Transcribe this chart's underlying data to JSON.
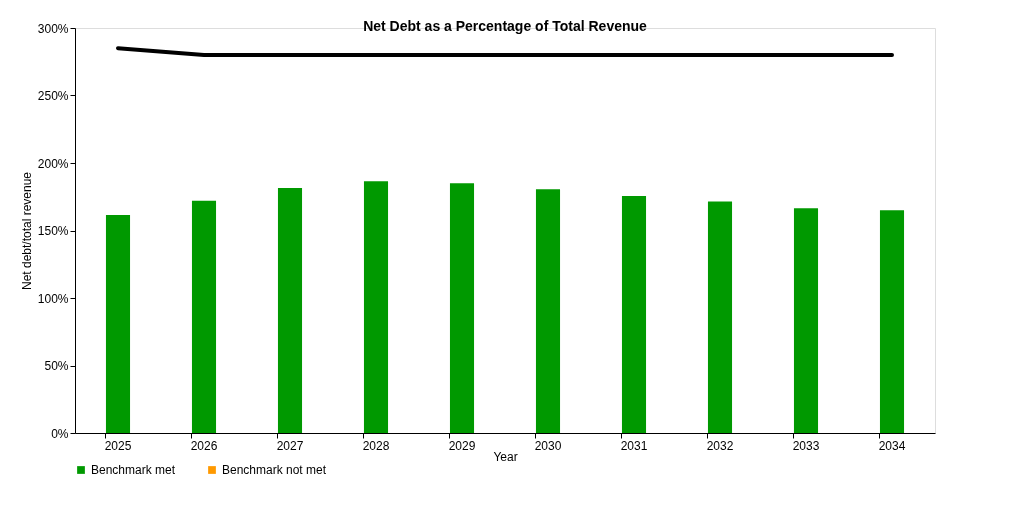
{
  "chart_data": {
    "type": "bar",
    "title": "Net Debt as a Percentage of Total Revenue",
    "xlabel": "Year",
    "ylabel": "Net debt/total revenue",
    "categories": [
      "2025",
      "2026",
      "2027",
      "2028",
      "2029",
      "2030",
      "2031",
      "2032",
      "2033",
      "2034"
    ],
    "series": [
      {
        "name": "Benchmark met",
        "color": "#009900",
        "values": [
          161.5,
          172,
          181.5,
          186.5,
          185,
          180.5,
          175.5,
          171.5,
          166.5,
          165
        ]
      },
      {
        "name": "Benchmark not met",
        "color": "#ff9900",
        "values": [
          null,
          null,
          null,
          null,
          null,
          null,
          null,
          null,
          null,
          null
        ]
      },
      {
        "type": "line",
        "color": "#000000",
        "values": [
          285,
          280,
          280,
          280,
          280,
          280,
          280,
          280,
          280,
          280
        ]
      }
    ],
    "ylim": [
      0,
      300
    ],
    "yticks": [
      {
        "value": 0,
        "label": "0%"
      },
      {
        "value": 50,
        "label": "50%"
      },
      {
        "value": 100,
        "label": "100%"
      },
      {
        "value": 150,
        "label": "150%"
      },
      {
        "value": 200,
        "label": "200%"
      },
      {
        "value": 250,
        "label": "250%"
      },
      {
        "value": 300,
        "label": "300%"
      }
    ],
    "grid": false,
    "legend": "bottom",
    "marker": "none",
    "line_style": "solid"
  }
}
